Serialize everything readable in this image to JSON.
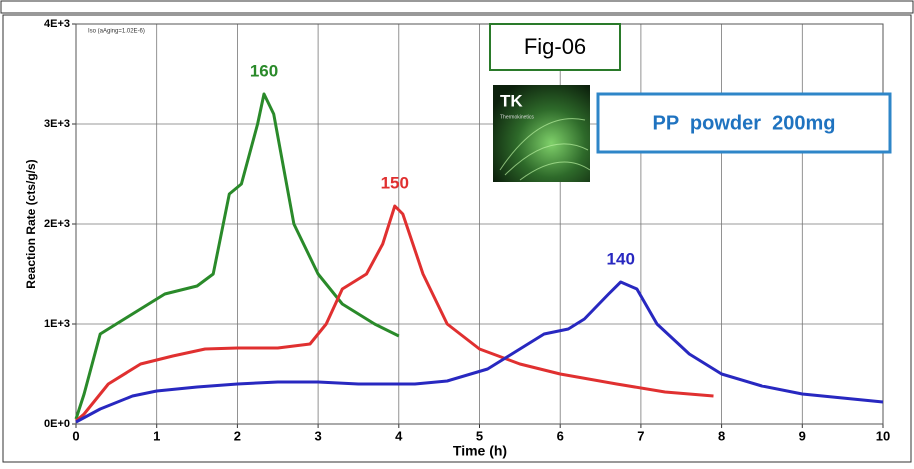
{
  "chart_data": {
    "type": "line",
    "note": "Iso (aAging=1.02E-6)",
    "figure_label": "Fig-06",
    "logo_title": "TK",
    "logo_subtitle": "Thermokinetics",
    "sample_label": "PP  powder  200mg",
    "x_label": "Time (h)",
    "y_label": "Reaction Rate (cts/g/s)",
    "xlim": [
      0,
      10
    ],
    "xticks": [
      0,
      1,
      2,
      3,
      4,
      5,
      6,
      7,
      8,
      9,
      10
    ],
    "ylim": [
      0,
      4000
    ],
    "yticks": [
      {
        "value": 0,
        "label": "0E+0"
      },
      {
        "value": 1000,
        "label": "1E+3"
      },
      {
        "value": 2000,
        "label": "2E+3"
      },
      {
        "value": 3000,
        "label": "3E+3"
      },
      {
        "value": 4000,
        "label": "4E+3"
      }
    ],
    "grid": true,
    "series": [
      {
        "name": "160",
        "color": "#2a8a2a",
        "x": [
          0,
          0.1,
          0.3,
          0.5,
          0.9,
          1.1,
          1.5,
          1.7,
          1.9,
          2.05,
          2.25,
          2.33,
          2.45,
          2.7,
          3.0,
          3.3,
          3.7,
          4.0
        ],
        "values": [
          50,
          300,
          900,
          1000,
          1200,
          1300,
          1380,
          1500,
          2300,
          2400,
          3000,
          3300,
          3100,
          2000,
          1500,
          1200,
          1000,
          880
        ]
      },
      {
        "name": "150",
        "color": "#e03030",
        "x": [
          0,
          0.1,
          0.4,
          0.8,
          1.2,
          1.6,
          2.0,
          2.5,
          2.9,
          3.1,
          3.3,
          3.6,
          3.8,
          3.95,
          4.05,
          4.3,
          4.6,
          5.0,
          5.5,
          6.0,
          6.7,
          7.3,
          7.9
        ],
        "values": [
          30,
          100,
          400,
          600,
          680,
          750,
          760,
          760,
          800,
          1000,
          1350,
          1500,
          1800,
          2180,
          2100,
          1500,
          1000,
          750,
          600,
          500,
          400,
          320,
          280
        ]
      },
      {
        "name": "140",
        "color": "#2828c0",
        "x": [
          0,
          0.3,
          0.7,
          1.0,
          1.5,
          2.0,
          2.5,
          3.0,
          3.5,
          4.2,
          4.6,
          5.1,
          5.5,
          5.8,
          6.1,
          6.3,
          6.6,
          6.75,
          6.95,
          7.2,
          7.6,
          8.0,
          8.5,
          9.0,
          9.5,
          10.0
        ],
        "values": [
          20,
          150,
          280,
          330,
          370,
          400,
          420,
          420,
          400,
          400,
          430,
          550,
          750,
          900,
          950,
          1050,
          1300,
          1420,
          1350,
          1000,
          700,
          500,
          380,
          300,
          260,
          220
        ]
      }
    ]
  }
}
